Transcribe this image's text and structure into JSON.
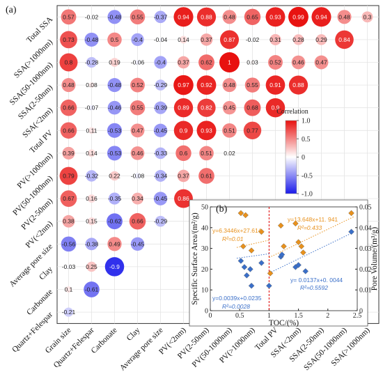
{
  "panel_a_label": "(a)",
  "panel_b_label": "(b)",
  "chart_data": [
    {
      "type": "heatmap",
      "row_labels": [
        "Total SSA",
        "SSA(>1000nm)",
        "SSA(50-1000nm)",
        "SSA(2-50nm)",
        "SSA(<2nm)",
        "Total PV",
        "PV(>1000nm)",
        "PV(50-1000nm)",
        "PV(2-50nm)",
        "PV(<2nm)",
        "Average pore size",
        "Clay",
        "Carbonate",
        "Quartz+Felespar"
      ],
      "col_labels": [
        "Grain size",
        "Quartz+Felespar",
        "Carbonate",
        "Clay",
        "Average pore size",
        "PV(<2nm)",
        "PV(2-50nm)",
        "PV(50-1000nm)",
        "PV(>1000nm)",
        "Total PV",
        "SSA(<2nm)",
        "SSA(2-50nm)",
        "SSA(50-1000nm)",
        "SSA(>1000nm)"
      ],
      "values": [
        [
          0.57,
          -0.02,
          -0.48,
          0.55,
          -0.37,
          0.94,
          0.88,
          0.48,
          0.65,
          0.93,
          0.99,
          0.94,
          0.48,
          0.3
        ],
        [
          0.73,
          -0.48,
          0.5,
          -0.4,
          -0.04,
          0.14,
          0.37,
          0.87,
          -0.02,
          0.31,
          0.28,
          0.29,
          0.84
        ],
        [
          0.8,
          -0.28,
          0.19,
          -0.06,
          -0.4,
          0.37,
          0.62,
          1,
          0.03,
          0.52,
          0.46,
          0.47
        ],
        [
          0.48,
          0.08,
          -0.48,
          0.52,
          -0.29,
          0.97,
          0.92,
          0.48,
          0.55,
          0.91,
          0.88
        ],
        [
          0.66,
          -0.07,
          -0.46,
          0.55,
          -0.39,
          0.89,
          0.82,
          0.45,
          0.68,
          0.9
        ],
        [
          0.66,
          0.11,
          -0.53,
          0.47,
          -0.45,
          0.9,
          0.93,
          0.51,
          0.77
        ],
        [
          0.39,
          0.14,
          -0.53,
          0.46,
          -0.33,
          0.6,
          0.51,
          0.02
        ],
        [
          0.79,
          -0.32,
          0.22,
          -0.08,
          -0.34,
          0.37,
          0.61
        ],
        [
          0.67,
          0.16,
          -0.35,
          0.34,
          -0.45,
          0.86
        ],
        [
          0.38,
          0.15,
          -0.62,
          0.66,
          -0.29
        ],
        [
          -0.56,
          -0.38,
          0.49,
          -0.45
        ],
        [
          -0.03,
          0.25,
          -0.9
        ],
        [
          0.1,
          -0.61
        ],
        [
          -0.21
        ]
      ],
      "legend_title": "Correlation",
      "legend_ticks": [
        "1.0",
        "0.5",
        "0",
        "-0.5",
        "-1.0"
      ],
      "colors": {
        "positive": "#e8110f",
        "negative": "#1a1aea",
        "neutral": "#ffffff"
      }
    },
    {
      "type": "scatter",
      "xlabel": "TOC/(%)",
      "ylabel_left": "Specific Surface Area/(m²/g)",
      "ylabel_right": "Pore Volume/(m³/g)",
      "xlim": [
        0,
        2.5
      ],
      "ylim_left": [
        0,
        50
      ],
      "ylim_right": [
        0,
        0.05
      ],
      "x_ticks": [
        "0",
        "0.5",
        "1",
        "1.5",
        "2",
        "2.5"
      ],
      "y_left_ticks": [
        "0",
        "10",
        "20",
        "30",
        "40",
        "50"
      ],
      "y_right_ticks": [
        "0",
        "0.01",
        "0.02",
        "0.03",
        "0.04",
        "0.05"
      ],
      "vline_x": 1,
      "series": [
        {
          "axis": "left",
          "color": "#e8911c",
          "points": [
            [
              0.52,
              47
            ],
            [
              0.56,
              31
            ],
            [
              0.6,
              46
            ],
            [
              0.7,
              29
            ],
            [
              0.87,
              38
            ],
            [
              1.02,
              18
            ],
            [
              1.2,
              41
            ],
            [
              1.25,
              31
            ],
            [
              1.45,
              42
            ],
            [
              1.5,
              33
            ],
            [
              1.55,
              31
            ],
            [
              1.58,
              28
            ],
            [
              2.4,
              47
            ]
          ]
        },
        {
          "axis": "right",
          "color": "#3a6fc9",
          "points": [
            [
              0.52,
              0.024
            ],
            [
              0.58,
              0.021
            ],
            [
              0.62,
              0.017
            ],
            [
              0.68,
              0.02
            ],
            [
              0.7,
              0.012
            ],
            [
              0.87,
              0.023
            ],
            [
              1.0,
              0.012
            ],
            [
              1.2,
              0.026
            ],
            [
              1.22,
              0.027
            ],
            [
              1.45,
              0.021
            ],
            [
              1.5,
              0.022
            ],
            [
              1.62,
              0.019
            ],
            [
              2.4,
              0.038
            ]
          ]
        }
      ],
      "fits": [
        {
          "label": "y=6.3446x+27.614",
          "r2": "R²=0.01",
          "color": "#e8911c",
          "axis": "left",
          "x_range": [
            0.45,
            1.0
          ],
          "slope": 6.3446,
          "intercept": 27.614
        },
        {
          "label": "y=13.648x+11. 941",
          "r2": "R²=0.433",
          "color": "#e8911c",
          "axis": "left",
          "x_range": [
            1.0,
            2.45
          ],
          "slope": 13.648,
          "intercept": 11.941
        },
        {
          "label": "y=0.0039x+0.0235",
          "r2": "R²=0.0028",
          "color": "#3a6fc9",
          "axis": "right",
          "x_range": [
            0.45,
            1.0
          ],
          "slope": 0.0039,
          "intercept": 0.0235
        },
        {
          "label": "y= 0.0137x+0. 0044",
          "r2": "R²=0.5592",
          "color": "#3a6fc9",
          "axis": "right",
          "x_range": [
            1.0,
            2.45
          ],
          "slope": 0.0137,
          "intercept": 0.0044
        }
      ]
    }
  ]
}
